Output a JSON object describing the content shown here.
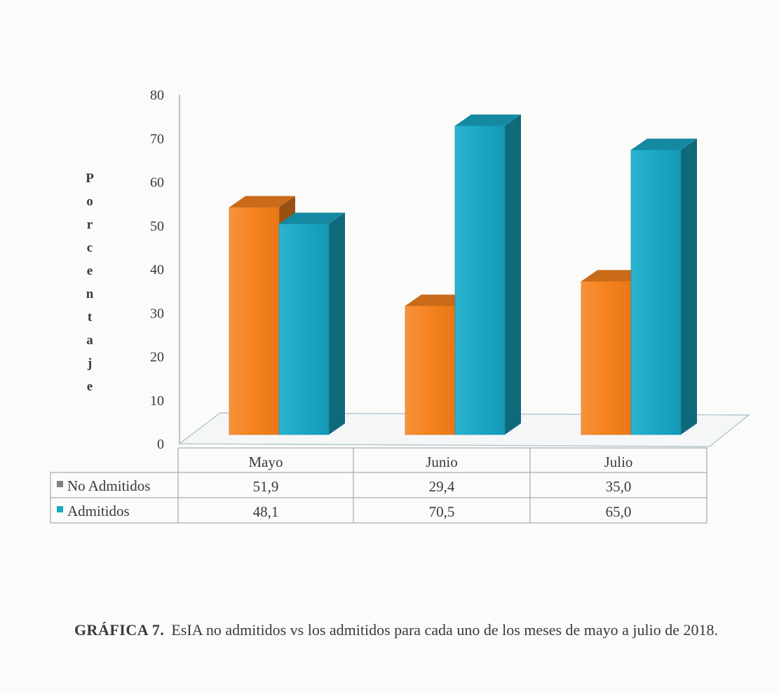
{
  "chart_data": {
    "type": "bar",
    "categories": [
      "Mayo",
      "Junio",
      "Julio"
    ],
    "series": [
      {
        "name": "No Admitidos",
        "values": [
          51.9,
          29.4,
          35.0
        ],
        "labels": [
          "51,9",
          "29,4",
          "35,0"
        ],
        "color": "#f5821f"
      },
      {
        "name": "Admitidos",
        "values": [
          48.1,
          70.5,
          65.0
        ],
        "labels": [
          "48,1",
          "70,5",
          "65,0"
        ],
        "color": "#1aa7c4"
      }
    ],
    "ylabel": "Porcentaje",
    "ylim": [
      0,
      80
    ],
    "yticks": [
      "0",
      "10",
      "20",
      "30",
      "40",
      "50",
      "60",
      "70",
      "80"
    ],
    "data_table": true,
    "style": "3d-column"
  },
  "caption": {
    "label": "GRÁFICA 7.",
    "text": "EsIA no admitidos vs los admitidos para cada uno de los meses de mayo a julio de 2018."
  }
}
